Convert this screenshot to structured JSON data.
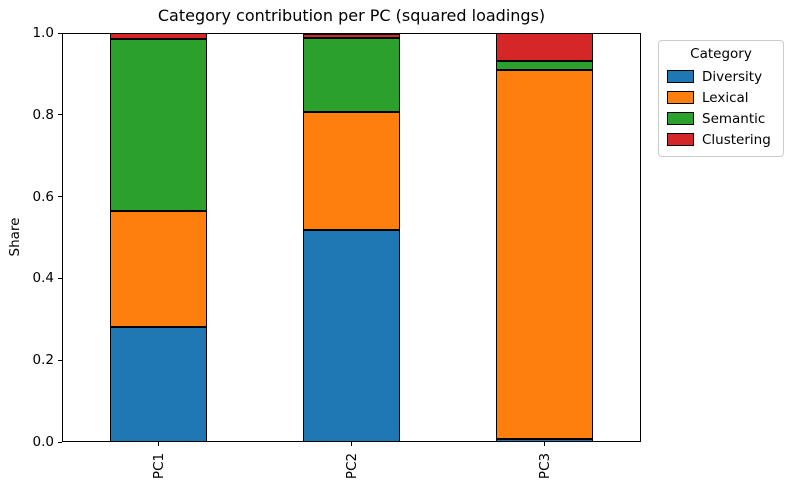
{
  "chart_data": {
    "type": "bar",
    "stacked": true,
    "title": "Category contribution per PC (squared loadings)",
    "xlabel": "",
    "ylabel": "Share",
    "categories": [
      "PC1",
      "PC2",
      "PC3"
    ],
    "series": [
      {
        "name": "Diversity",
        "color": "#1f77b4",
        "values": [
          0.281,
          0.518,
          0.007
        ]
      },
      {
        "name": "Lexical",
        "color": "#ff7f0e",
        "values": [
          0.284,
          0.29,
          0.902
        ]
      },
      {
        "name": "Semantic",
        "color": "#2ca02c",
        "values": [
          0.42,
          0.179,
          0.022
        ]
      },
      {
        "name": "Clustering",
        "color": "#d62728",
        "values": [
          0.014,
          0.01,
          0.069
        ]
      }
    ],
    "ylim": [
      0.0,
      1.0
    ],
    "ytick_labels": [
      "0.0",
      "0.2",
      "0.4",
      "0.6",
      "0.8",
      "1.0"
    ],
    "xtick_rotation": 90,
    "grid": false,
    "bar_edge_color": "#000000",
    "legend": {
      "title": "Category",
      "position": "upper-right-outside"
    }
  }
}
